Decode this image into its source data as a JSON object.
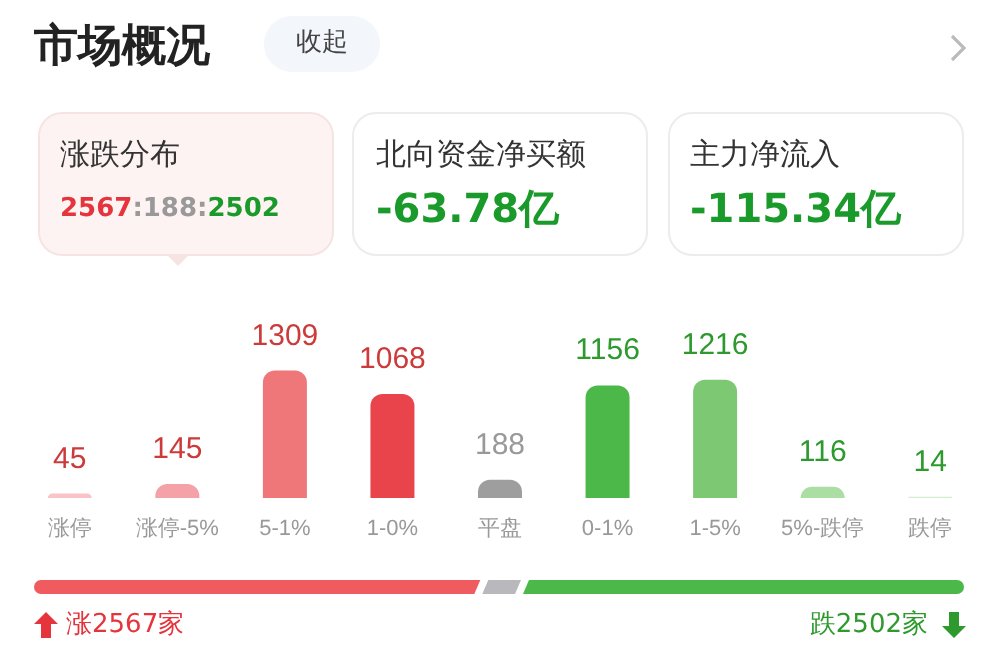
{
  "chart_data": {
    "type": "bar",
    "categories": [
      "涨停",
      "涨停-5%",
      "5-1%",
      "1-0%",
      "平盘",
      "0-1%",
      "1-5%",
      "5%-跌停",
      "跌停"
    ],
    "values": [
      45,
      145,
      1309,
      1068,
      188,
      1156,
      1216,
      116,
      14
    ],
    "colors": [
      "#f9c3c8",
      "#f4a2a8",
      "#ef7779",
      "#e9444b",
      "#9e9e9e",
      "#4cb84a",
      "#7cc873",
      "#abdea3",
      "#d3edcf"
    ],
    "data_labels": true,
    "annotations": [
      "市场概况",
      "收起",
      "涨跌分布",
      "2567:188:2502",
      "北向资金净买额",
      "-63.78亿",
      "主力净流入",
      "-115.34亿",
      "涨2567家",
      "跌2502家"
    ]
  }
}
